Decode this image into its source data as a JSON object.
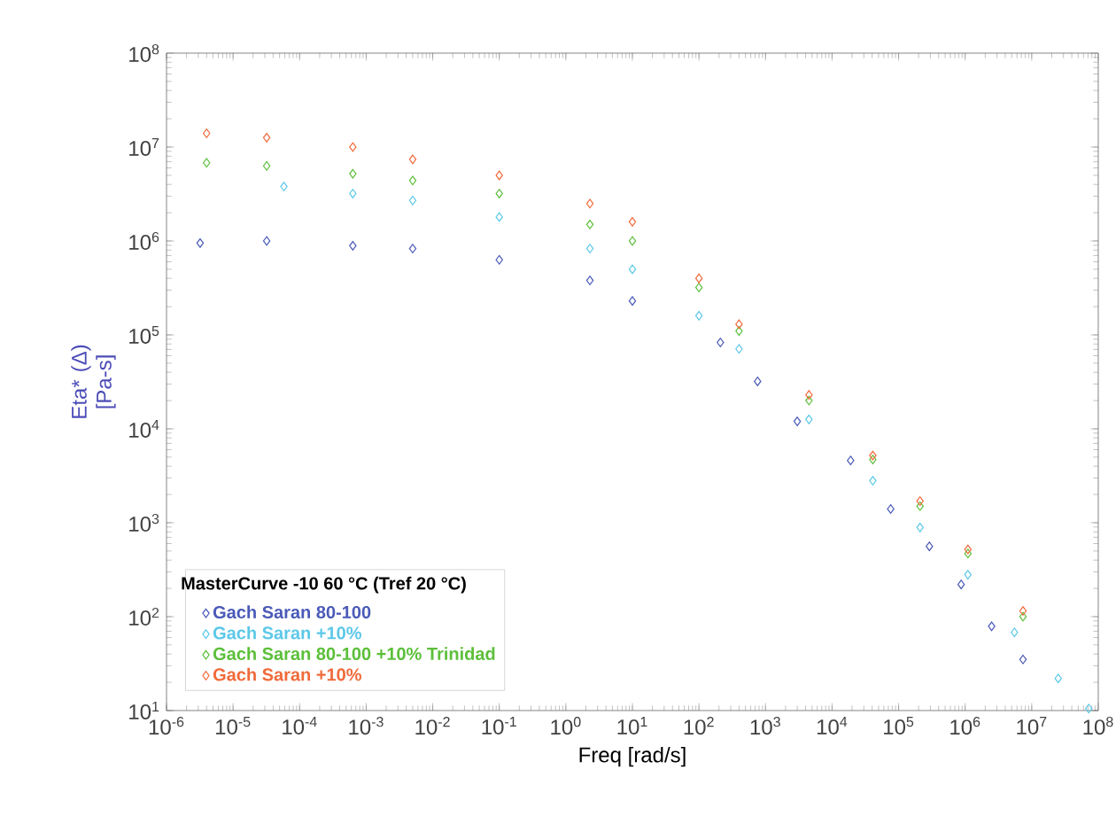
{
  "chart_data": {
    "type": "scatter",
    "xlabel": "Freq [rad/s]",
    "ylabel": "Eta* (Δ) [Pa-s]",
    "legend_title": "MasterCurve -10 60 °C (Tref 20 °C)",
    "log": "xy",
    "marker": "diamond",
    "legend": "bottom left",
    "grid": false,
    "xlim": [
      1e-06,
      100000000.0
    ],
    "ylim": [
      10,
      100000000.0
    ],
    "xticks": [
      {
        "value": 1e-06,
        "label": "10$^{-6}$"
      },
      {
        "value": 1e-05,
        "label": "10$^{-5}$"
      },
      {
        "value": 0.0001,
        "label": "10$^{-4}$"
      },
      {
        "value": 0.001,
        "label": "10$^{-3}$"
      },
      {
        "value": 0.01,
        "label": "10$^{-2}$"
      },
      {
        "value": 0.1,
        "label": "10$^{-1}$"
      },
      {
        "value": 1,
        "label": "10$^{0}$"
      },
      {
        "value": 10,
        "label": "10$^{1}$"
      },
      {
        "value": 100,
        "label": "10$^{2}$"
      },
      {
        "value": 1000,
        "label": "10$^{3}$"
      },
      {
        "value": 10000.0,
        "label": "10$^{4}$"
      },
      {
        "value": 100000.0,
        "label": "10$^{5}$"
      },
      {
        "value": 1000000.0,
        "label": "10$^{6}$"
      },
      {
        "value": 10000000.0,
        "label": "10$^{7}$"
      },
      {
        "value": 100000000.0,
        "label": "10$^{8}$"
      }
    ],
    "yticks": [
      {
        "value": 10,
        "label": "10$^{1}$"
      },
      {
        "value": 100,
        "label": "10$^{2}$"
      },
      {
        "value": 1000,
        "label": "10$^{3}$"
      },
      {
        "value": 10000.0,
        "label": "10$^{4}$"
      },
      {
        "value": 100000.0,
        "label": "10$^{5}$"
      },
      {
        "value": 1000000.0,
        "label": "10$^{6}$"
      },
      {
        "value": 10000000.0,
        "label": "10$^{7}$"
      },
      {
        "value": 100000000.0,
        "label": "10$^{8}$"
      }
    ],
    "series": [
      {
        "name": "Gach Saran  80-100",
        "color": "#4a5ab8",
        "x": [
          3.2e-06,
          3.2e-05,
          0.00063,
          0.005,
          0.1,
          2.3,
          10,
          210,
          760,
          3000,
          19000.0,
          76000.0,
          290000.0,
          870000.0,
          2500000.0,
          7400000.0
        ],
        "values": [
          950000.0,
          1000000.0,
          890000.0,
          830000.0,
          630000.0,
          380000.0,
          230000.0,
          83000.0,
          32000.0,
          12000.0,
          4600.0,
          1400.0,
          560,
          220,
          79,
          35
        ]
      },
      {
        "name": "Gach Saran +10%",
        "color": "#5cc8e8",
        "x": [
          5.8e-05,
          0.00063,
          0.005,
          0.1,
          2.3,
          10,
          100,
          400,
          4500,
          41000.0,
          210000.0,
          1100000.0,
          5500000.0,
          25000000.0,
          72000000.0
        ],
        "values": [
          3800000.0,
          3200000.0,
          2700000.0,
          1800000.0,
          830000.0,
          500000.0,
          160000.0,
          71000.0,
          12600.0,
          2800.0,
          890,
          280,
          68,
          22,
          10.5
        ]
      },
      {
        "name": "Gach Saran 80-100 +10% Trinidad",
        "color": "#5cbf3a",
        "x": [
          4e-06,
          3.2e-05,
          0.00063,
          0.005,
          0.1,
          2.3,
          10,
          100,
          400,
          4500,
          41000.0,
          210000.0,
          1100000.0,
          7400000.0
        ],
        "values": [
          6800000.0,
          6300000.0,
          5200000.0,
          4400000.0,
          3200000.0,
          1500000.0,
          1000000.0,
          320000.0,
          110000.0,
          20000.0,
          4700.0,
          1500.0,
          470,
          100
        ]
      },
      {
        "name": "Gach Saran +10%",
        "color": "#f06a3a",
        "x": [
          4e-06,
          3.2e-05,
          0.00063,
          0.005,
          0.1,
          2.3,
          10,
          100,
          400,
          4500,
          41000.0,
          210000.0,
          1100000.0,
          7400000.0
        ],
        "values": [
          14000000.0,
          12600000.0,
          10000000.0,
          7400000.0,
          5000000.0,
          2500000.0,
          1600000.0,
          400000.0,
          130000.0,
          23000.0,
          5200.0,
          1700.0,
          520,
          115
        ]
      }
    ]
  }
}
